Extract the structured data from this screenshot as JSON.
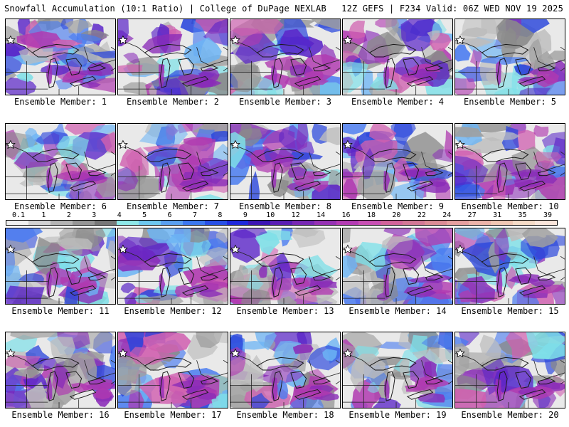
{
  "header": {
    "title_left": "Snowfall Accumulation (10:1 Ratio) | College of DuPage NEXLAB",
    "title_right": "12Z GEFS | F234 Valid: 06Z WED NOV 19 2025"
  },
  "colorbar": {
    "labels": [
      "0.1",
      "1",
      "2",
      "3",
      "4",
      "5",
      "6",
      "7",
      "8",
      "9",
      "10",
      "12",
      "14",
      "16",
      "18",
      "20",
      "22",
      "24",
      "27",
      "31",
      "35",
      "39"
    ],
    "colors": [
      "#f0f0f0",
      "#d2d2d2",
      "#b4b4b4",
      "#969696",
      "#787878",
      "#8ee8e8",
      "#6ec8f0",
      "#5aa0f0",
      "#3c78f0",
      "#2850e6",
      "#1e28dc",
      "#3c14b4",
      "#5a1eb4",
      "#7828b4",
      "#9632b4",
      "#b43cb4",
      "#c850b4",
      "#d2649b",
      "#d27896",
      "#dc8c96",
      "#e6a0a0",
      "#ecb4aa",
      "#f0c8b4",
      "#f5dcc8",
      "#fae6dc"
    ]
  },
  "panels": [
    {
      "label": "Ensemble Member: 1"
    },
    {
      "label": "Ensemble Member: 2"
    },
    {
      "label": "Ensemble Member: 3"
    },
    {
      "label": "Ensemble Member: 4"
    },
    {
      "label": "Ensemble Member: 5"
    },
    {
      "label": "Ensemble Member: 6"
    },
    {
      "label": "Ensemble Member: 7"
    },
    {
      "label": "Ensemble Member: 8"
    },
    {
      "label": "Ensemble Member: 9"
    },
    {
      "label": "Ensemble Member: 10"
    },
    {
      "label": "Ensemble Member: 11"
    },
    {
      "label": "Ensemble Member: 12"
    },
    {
      "label": "Ensemble Member: 13"
    },
    {
      "label": "Ensemble Member: 14"
    },
    {
      "label": "Ensemble Member: 15"
    },
    {
      "label": "Ensemble Member: 16"
    },
    {
      "label": "Ensemble Member: 17"
    },
    {
      "label": "Ensemble Member: 18"
    },
    {
      "label": "Ensemble Member: 19"
    },
    {
      "label": "Ensemble Member: 20"
    }
  ]
}
